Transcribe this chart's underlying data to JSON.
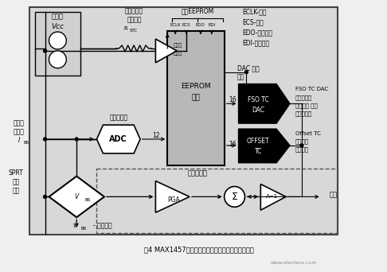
{
  "bg_color": "#e8e8e8",
  "white": "#ffffff",
  "black": "#000000",
  "gray_eeprom": "#b0b0b0",
  "caption": "图4 MAX1457内部电路补偿失调和满偏输出温度误差",
  "website": "www.elecfans.com",
  "top_right_labels": [
    "ECLK-时钟",
    "ECS-片选",
    "EDO-数据输出",
    "EDI-数据输入"
  ],
  "fso_label1": "FSO TC DAC",
  "fso_label2": "满偏输出的",
  "fso_label3": "温度相关 误差",
  "fso_label4": "数模转换器",
  "offset_label1": "Offset TC",
  "offset_label2": "补偿失调",
  "offset_label3": "温度漂移"
}
